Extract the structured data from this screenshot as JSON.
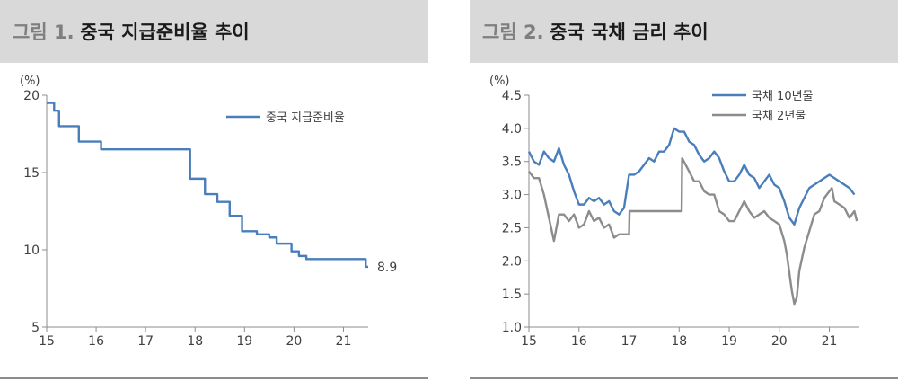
{
  "charts": [
    {
      "title_prefix": "그림 1.",
      "title_main": "중국 지급준비율 추이",
      "colors": {
        "line": "#4a7ebb",
        "axis": "#8c8c8c",
        "text": "#404040"
      }
    },
    {
      "title_prefix": "그림 2.",
      "title_main": "중국 국채 금리 추이",
      "colors": {
        "series1": "#4a7ebb",
        "series2": "#8c8c8c",
        "axis": "#8c8c8c",
        "text": "#404040"
      }
    }
  ],
  "chart_data": [
    {
      "type": "line",
      "unit_label": "(%)",
      "ylim": [
        5,
        20
      ],
      "yticks": [
        "20",
        "15",
        "10",
        "5"
      ],
      "xlim": [
        15,
        21.5
      ],
      "xticks": [
        "15",
        "16",
        "17",
        "18",
        "19",
        "20",
        "21"
      ],
      "grid": false,
      "legend_position": "top-right",
      "end_label": "8.9",
      "series": [
        {
          "name": "중국 지급준비율",
          "step": true,
          "points": [
            [
              15.0,
              19.5
            ],
            [
              15.15,
              19.0
            ],
            [
              15.25,
              18.0
            ],
            [
              15.65,
              17.0
            ],
            [
              16.1,
              16.5
            ],
            [
              17.9,
              14.6
            ],
            [
              18.2,
              13.6
            ],
            [
              18.45,
              13.1
            ],
            [
              18.7,
              12.2
            ],
            [
              18.95,
              11.2
            ],
            [
              19.25,
              11.0
            ],
            [
              19.5,
              10.8
            ],
            [
              19.65,
              10.4
            ],
            [
              19.95,
              9.9
            ],
            [
              20.1,
              9.6
            ],
            [
              20.25,
              9.4
            ],
            [
              21.45,
              8.9
            ]
          ],
          "end_x": 21.5
        }
      ]
    },
    {
      "type": "line",
      "unit_label": "(%)",
      "ylim": [
        1.0,
        4.5
      ],
      "yticks": [
        "4.5",
        "4.0",
        "3.5",
        "3.0",
        "2.5",
        "2.0",
        "1.5",
        "1.0"
      ],
      "xlim": [
        15,
        21.6
      ],
      "xticks": [
        "15",
        "16",
        "17",
        "18",
        "19",
        "20",
        "21"
      ],
      "grid": false,
      "legend_position": "top-right",
      "series": [
        {
          "name": "국채 10년물",
          "points": [
            [
              15.0,
              3.65
            ],
            [
              15.1,
              3.5
            ],
            [
              15.2,
              3.45
            ],
            [
              15.3,
              3.65
            ],
            [
              15.4,
              3.55
            ],
            [
              15.5,
              3.5
            ],
            [
              15.6,
              3.7
            ],
            [
              15.7,
              3.45
            ],
            [
              15.8,
              3.3
            ],
            [
              15.9,
              3.05
            ],
            [
              16.0,
              2.85
            ],
            [
              16.1,
              2.85
            ],
            [
              16.2,
              2.95
            ],
            [
              16.3,
              2.9
            ],
            [
              16.4,
              2.95
            ],
            [
              16.5,
              2.85
            ],
            [
              16.6,
              2.9
            ],
            [
              16.7,
              2.75
            ],
            [
              16.8,
              2.7
            ],
            [
              16.9,
              2.8
            ],
            [
              17.0,
              3.3
            ],
            [
              17.1,
              3.3
            ],
            [
              17.2,
              3.35
            ],
            [
              17.3,
              3.45
            ],
            [
              17.4,
              3.55
            ],
            [
              17.5,
              3.5
            ],
            [
              17.6,
              3.65
            ],
            [
              17.7,
              3.65
            ],
            [
              17.8,
              3.75
            ],
            [
              17.9,
              4.0
            ],
            [
              18.0,
              3.95
            ],
            [
              18.1,
              3.95
            ],
            [
              18.2,
              3.8
            ],
            [
              18.3,
              3.75
            ],
            [
              18.4,
              3.6
            ],
            [
              18.5,
              3.5
            ],
            [
              18.6,
              3.55
            ],
            [
              18.7,
              3.65
            ],
            [
              18.8,
              3.55
            ],
            [
              18.9,
              3.35
            ],
            [
              19.0,
              3.2
            ],
            [
              19.1,
              3.2
            ],
            [
              19.2,
              3.3
            ],
            [
              19.3,
              3.45
            ],
            [
              19.4,
              3.3
            ],
            [
              19.5,
              3.25
            ],
            [
              19.6,
              3.1
            ],
            [
              19.7,
              3.2
            ],
            [
              19.8,
              3.3
            ],
            [
              19.9,
              3.15
            ],
            [
              20.0,
              3.1
            ],
            [
              20.1,
              2.9
            ],
            [
              20.2,
              2.65
            ],
            [
              20.3,
              2.55
            ],
            [
              20.4,
              2.8
            ],
            [
              20.5,
              2.95
            ],
            [
              20.6,
              3.1
            ],
            [
              20.7,
              3.15
            ],
            [
              20.8,
              3.2
            ],
            [
              20.9,
              3.25
            ],
            [
              21.0,
              3.3
            ],
            [
              21.1,
              3.25
            ],
            [
              21.2,
              3.2
            ],
            [
              21.3,
              3.15
            ],
            [
              21.4,
              3.1
            ],
            [
              21.5,
              3.0
            ]
          ]
        },
        {
          "name": "국채 2년물",
          "points": [
            [
              15.0,
              3.35
            ],
            [
              15.1,
              3.25
            ],
            [
              15.2,
              3.25
            ],
            [
              15.3,
              3.0
            ],
            [
              15.4,
              2.65
            ],
            [
              15.5,
              2.3
            ],
            [
              15.6,
              2.7
            ],
            [
              15.7,
              2.7
            ],
            [
              15.8,
              2.6
            ],
            [
              15.9,
              2.7
            ],
            [
              16.0,
              2.5
            ],
            [
              16.1,
              2.55
            ],
            [
              16.2,
              2.75
            ],
            [
              16.3,
              2.6
            ],
            [
              16.4,
              2.65
            ],
            [
              16.5,
              2.5
            ],
            [
              16.6,
              2.55
            ],
            [
              16.7,
              2.35
            ],
            [
              16.8,
              2.4
            ],
            [
              16.9,
              2.4
            ],
            [
              17.0,
              2.4
            ],
            [
              17.01,
              2.75
            ],
            [
              17.5,
              2.75
            ],
            [
              18.05,
              2.75
            ],
            [
              18.06,
              3.55
            ],
            [
              18.2,
              3.35
            ],
            [
              18.3,
              3.2
            ],
            [
              18.4,
              3.2
            ],
            [
              18.5,
              3.05
            ],
            [
              18.6,
              3.0
            ],
            [
              18.7,
              3.0
            ],
            [
              18.8,
              2.75
            ],
            [
              18.9,
              2.7
            ],
            [
              19.0,
              2.6
            ],
            [
              19.1,
              2.6
            ],
            [
              19.2,
              2.75
            ],
            [
              19.3,
              2.9
            ],
            [
              19.4,
              2.75
            ],
            [
              19.5,
              2.65
            ],
            [
              19.6,
              2.7
            ],
            [
              19.7,
              2.75
            ],
            [
              19.8,
              2.65
            ],
            [
              19.9,
              2.6
            ],
            [
              20.0,
              2.55
            ],
            [
              20.1,
              2.3
            ],
            [
              20.15,
              2.1
            ],
            [
              20.25,
              1.55
            ],
            [
              20.3,
              1.35
            ],
            [
              20.35,
              1.45
            ],
            [
              20.4,
              1.85
            ],
            [
              20.5,
              2.2
            ],
            [
              20.6,
              2.45
            ],
            [
              20.7,
              2.7
            ],
            [
              20.8,
              2.75
            ],
            [
              20.9,
              2.95
            ],
            [
              21.0,
              3.05
            ],
            [
              21.05,
              3.1
            ],
            [
              21.1,
              2.9
            ],
            [
              21.2,
              2.85
            ],
            [
              21.3,
              2.8
            ],
            [
              21.4,
              2.65
            ],
            [
              21.5,
              2.75
            ],
            [
              21.55,
              2.6
            ]
          ]
        }
      ]
    }
  ]
}
